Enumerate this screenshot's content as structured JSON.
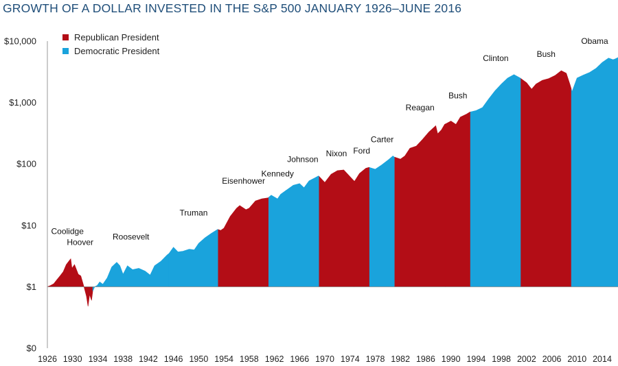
{
  "title": "GROWTH OF A DOLLAR INVESTED IN THE S&P 500 JANUARY 1926–JUNE 2016",
  "legend": [
    {
      "label": "Republican President",
      "color": "#b30d16"
    },
    {
      "label": "Democratic President",
      "color": "#1aa3dc"
    }
  ],
  "chart_data": {
    "type": "area",
    "title": "GROWTH OF A DOLLAR INVESTED IN THE S&P 500 JANUARY 1926–JUNE 2016",
    "y_scale": "log",
    "ylim": [
      0.1,
      10000
    ],
    "xlim": [
      1926,
      2016.5
    ],
    "y_ticks": [
      {
        "value": 10000,
        "label": "$10,000"
      },
      {
        "value": 1000,
        "label": "$1,000"
      },
      {
        "value": 100,
        "label": "$100"
      },
      {
        "value": 10,
        "label": "$10"
      },
      {
        "value": 1,
        "label": "$1"
      },
      {
        "value": 0.1,
        "label": "$0"
      }
    ],
    "x_ticks": [
      1926,
      1930,
      1934,
      1938,
      1942,
      1946,
      1950,
      1954,
      1958,
      1962,
      1966,
      1970,
      1974,
      1978,
      1982,
      1986,
      1990,
      1994,
      1998,
      2002,
      2006,
      2010,
      2014
    ],
    "grid": false,
    "legend_position": "top-left",
    "series": [
      {
        "x": 1926.0,
        "y": 1.0
      },
      {
        "x": 1926.5,
        "y": 1.05
      },
      {
        "x": 1927.0,
        "y": 1.12
      },
      {
        "x": 1927.5,
        "y": 1.3
      },
      {
        "x": 1928.0,
        "y": 1.5
      },
      {
        "x": 1928.5,
        "y": 1.75
      },
      {
        "x": 1929.0,
        "y": 2.3
      },
      {
        "x": 1929.4,
        "y": 2.6
      },
      {
        "x": 1929.7,
        "y": 2.85
      },
      {
        "x": 1929.9,
        "y": 2.0
      },
      {
        "x": 1930.3,
        "y": 2.3
      },
      {
        "x": 1930.9,
        "y": 1.6
      },
      {
        "x": 1931.3,
        "y": 1.5
      },
      {
        "x": 1931.8,
        "y": 1.0
      },
      {
        "x": 1932.2,
        "y": 0.7
      },
      {
        "x": 1932.45,
        "y": 0.48
      },
      {
        "x": 1932.7,
        "y": 0.75
      },
      {
        "x": 1933.0,
        "y": 0.6
      },
      {
        "x": 1933.2,
        "y": 0.85
      },
      {
        "x": 1933.5,
        "y": 1.0
      },
      {
        "x": 1933.9,
        "y": 1.05
      },
      {
        "x": 1934.3,
        "y": 1.2
      },
      {
        "x": 1934.8,
        "y": 1.1
      },
      {
        "x": 1935.5,
        "y": 1.4
      },
      {
        "x": 1936.2,
        "y": 2.1
      },
      {
        "x": 1937.0,
        "y": 2.5
      },
      {
        "x": 1937.5,
        "y": 2.2
      },
      {
        "x": 1938.0,
        "y": 1.6
      },
      {
        "x": 1938.7,
        "y": 2.2
      },
      {
        "x": 1939.5,
        "y": 1.9
      },
      {
        "x": 1940.5,
        "y": 2.0
      },
      {
        "x": 1941.5,
        "y": 1.8
      },
      {
        "x": 1942.3,
        "y": 1.55
      },
      {
        "x": 1943.0,
        "y": 2.2
      },
      {
        "x": 1944.0,
        "y": 2.6
      },
      {
        "x": 1945.0,
        "y": 3.3
      },
      {
        "x": 1945.3,
        "y": 3.5
      },
      {
        "x": 1946.0,
        "y": 4.4
      },
      {
        "x": 1946.7,
        "y": 3.7
      },
      {
        "x": 1947.5,
        "y": 3.8
      },
      {
        "x": 1948.5,
        "y": 4.1
      },
      {
        "x": 1949.3,
        "y": 4.0
      },
      {
        "x": 1950.0,
        "y": 5.1
      },
      {
        "x": 1951.0,
        "y": 6.3
      },
      {
        "x": 1952.0,
        "y": 7.4
      },
      {
        "x": 1953.0,
        "y": 8.6
      },
      {
        "x": 1953.5,
        "y": 8.3
      },
      {
        "x": 1954.0,
        "y": 9.0
      },
      {
        "x": 1955.0,
        "y": 14.0
      },
      {
        "x": 1956.0,
        "y": 19.0
      },
      {
        "x": 1956.5,
        "y": 21.0
      },
      {
        "x": 1957.5,
        "y": 18.0
      },
      {
        "x": 1958.0,
        "y": 19.0
      },
      {
        "x": 1959.0,
        "y": 25.0
      },
      {
        "x": 1960.0,
        "y": 27.0
      },
      {
        "x": 1961.0,
        "y": 28.0
      },
      {
        "x": 1961.5,
        "y": 31.0
      },
      {
        "x": 1962.5,
        "y": 27.0
      },
      {
        "x": 1963.0,
        "y": 32.0
      },
      {
        "x": 1964.0,
        "y": 38.0
      },
      {
        "x": 1965.0,
        "y": 45.0
      },
      {
        "x": 1966.0,
        "y": 48.0
      },
      {
        "x": 1966.7,
        "y": 41.0
      },
      {
        "x": 1967.5,
        "y": 53.0
      },
      {
        "x": 1968.5,
        "y": 60.0
      },
      {
        "x": 1969.0,
        "y": 64.0
      },
      {
        "x": 1970.0,
        "y": 50.0
      },
      {
        "x": 1971.0,
        "y": 68.0
      },
      {
        "x": 1972.0,
        "y": 78.0
      },
      {
        "x": 1973.0,
        "y": 80.0
      },
      {
        "x": 1974.0,
        "y": 62.0
      },
      {
        "x": 1974.7,
        "y": 52.0
      },
      {
        "x": 1975.5,
        "y": 70.0
      },
      {
        "x": 1976.5,
        "y": 85.0
      },
      {
        "x": 1977.0,
        "y": 88.0
      },
      {
        "x": 1978.0,
        "y": 82.0
      },
      {
        "x": 1979.0,
        "y": 96.0
      },
      {
        "x": 1980.0,
        "y": 115.0
      },
      {
        "x": 1980.8,
        "y": 135.0
      },
      {
        "x": 1981.0,
        "y": 130.0
      },
      {
        "x": 1982.0,
        "y": 120.0
      },
      {
        "x": 1982.7,
        "y": 135.0
      },
      {
        "x": 1983.5,
        "y": 180.0
      },
      {
        "x": 1984.5,
        "y": 195.0
      },
      {
        "x": 1985.5,
        "y": 250.0
      },
      {
        "x": 1986.5,
        "y": 330.0
      },
      {
        "x": 1987.6,
        "y": 420.0
      },
      {
        "x": 1987.9,
        "y": 310.0
      },
      {
        "x": 1988.5,
        "y": 360.0
      },
      {
        "x": 1989.0,
        "y": 440.0
      },
      {
        "x": 1990.0,
        "y": 500.0
      },
      {
        "x": 1990.8,
        "y": 440.0
      },
      {
        "x": 1991.5,
        "y": 580.0
      },
      {
        "x": 1992.5,
        "y": 650.0
      },
      {
        "x": 1993.0,
        "y": 700.0
      },
      {
        "x": 1994.0,
        "y": 740.0
      },
      {
        "x": 1995.0,
        "y": 830.0
      },
      {
        "x": 1996.0,
        "y": 1150.0
      },
      {
        "x": 1997.0,
        "y": 1550.0
      },
      {
        "x": 1998.0,
        "y": 2000.0
      },
      {
        "x": 1999.0,
        "y": 2500.0
      },
      {
        "x": 2000.0,
        "y": 2850.0
      },
      {
        "x": 2001.0,
        "y": 2500.0
      },
      {
        "x": 2002.0,
        "y": 2100.0
      },
      {
        "x": 2002.8,
        "y": 1650.0
      },
      {
        "x": 2003.5,
        "y": 2000.0
      },
      {
        "x": 2004.5,
        "y": 2300.0
      },
      {
        "x": 2005.5,
        "y": 2450.0
      },
      {
        "x": 2006.5,
        "y": 2750.0
      },
      {
        "x": 2007.5,
        "y": 3300.0
      },
      {
        "x": 2008.3,
        "y": 3000.0
      },
      {
        "x": 2008.9,
        "y": 1950.0
      },
      {
        "x": 2009.0,
        "y": 1800.0
      },
      {
        "x": 2009.2,
        "y": 1500.0
      },
      {
        "x": 2010.0,
        "y": 2500.0
      },
      {
        "x": 2011.0,
        "y": 2800.0
      },
      {
        "x": 2012.0,
        "y": 3100.0
      },
      {
        "x": 2013.0,
        "y": 3600.0
      },
      {
        "x": 2014.0,
        "y": 4500.0
      },
      {
        "x": 2015.0,
        "y": 5300.0
      },
      {
        "x": 2015.7,
        "y": 5000.0
      },
      {
        "x": 2016.0,
        "y": 5100.0
      },
      {
        "x": 2016.5,
        "y": 5400.0
      }
    ],
    "presidencies": [
      {
        "name": "Coolidge",
        "party": "R",
        "start": 1926.0,
        "end": 1929.2
      },
      {
        "name": "Hoover",
        "party": "R",
        "start": 1929.2,
        "end": 1933.2
      },
      {
        "name": "Roosevelt",
        "party": "D",
        "start": 1933.2,
        "end": 1945.3
      },
      {
        "name": "Truman",
        "party": "D",
        "start": 1945.3,
        "end": 1953.1
      },
      {
        "name": "Eisenhower",
        "party": "R",
        "start": 1953.1,
        "end": 1961.1
      },
      {
        "name": "Kennedy",
        "party": "D",
        "start": 1961.1,
        "end": 1963.9
      },
      {
        "name": "Johnson",
        "party": "D",
        "start": 1963.9,
        "end": 1969.1
      },
      {
        "name": "Nixon",
        "party": "R",
        "start": 1969.1,
        "end": 1974.6
      },
      {
        "name": "Ford",
        "party": "R",
        "start": 1974.6,
        "end": 1977.1
      },
      {
        "name": "Carter",
        "party": "D",
        "start": 1977.1,
        "end": 1981.1
      },
      {
        "name": "Reagan",
        "party": "R",
        "start": 1981.1,
        "end": 1989.1
      },
      {
        "name": "Bush",
        "party": "R",
        "start": 1989.1,
        "end": 1993.1
      },
      {
        "name": "Clinton",
        "party": "D",
        "start": 1993.1,
        "end": 2001.1
      },
      {
        "name": "Bush",
        "party": "R",
        "start": 2001.1,
        "end": 2009.1
      },
      {
        "name": "Obama",
        "party": "D",
        "start": 2009.1,
        "end": 2016.5
      }
    ]
  }
}
